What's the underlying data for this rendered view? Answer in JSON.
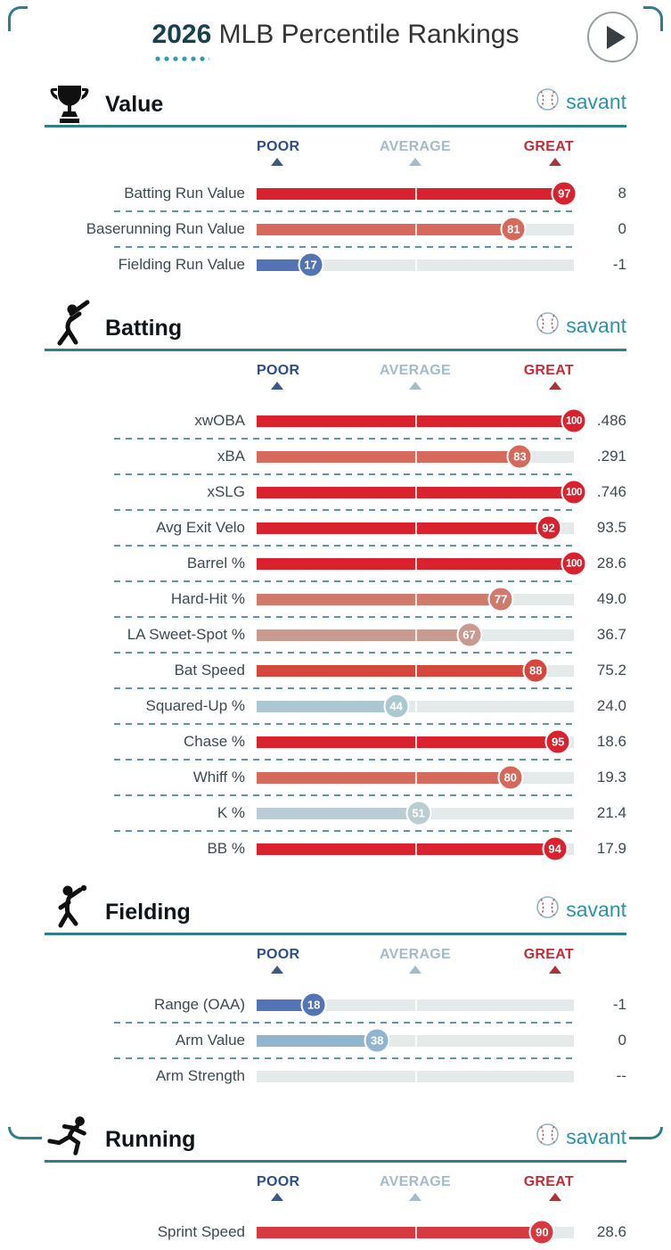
{
  "header": {
    "year": "2026",
    "title": "MLB Percentile Rankings",
    "play_icon": "play-icon"
  },
  "brand": {
    "name": "savant",
    "icon": "baseball-icon"
  },
  "scale": {
    "poor": "POOR",
    "average": "AVERAGE",
    "great": "GREAT"
  },
  "colors": {
    "teal_line": "#2e7e8b",
    "dashed_divider": "#5b98a4",
    "bar_track": "#e4e9ea",
    "poor_label": "#2c4e8d",
    "average_label": "#a4bcc8",
    "great_label": "#c52b35",
    "great_bar": "#d8232f",
    "poor_bar": "#5473b5"
  },
  "chart_data": {
    "type": "bar",
    "title": "2026 MLB Percentile Rankings",
    "x_range": [
      0,
      100
    ],
    "average_marker": 50,
    "legend": [
      "POOR",
      "AVERAGE",
      "GREAT"
    ],
    "sections": [
      {
        "name": "Value",
        "icon": "trophy-icon",
        "rows": [
          {
            "label": "Batting Run Value",
            "percentile": 97,
            "value": "8",
            "color": "#d8232f"
          },
          {
            "label": "Baserunning Run Value",
            "percentile": 81,
            "value": "0",
            "color": "#d5695c"
          },
          {
            "label": "Fielding Run Value",
            "percentile": 17,
            "value": "-1",
            "color": "#5473b5"
          }
        ]
      },
      {
        "name": "Batting",
        "icon": "batter-icon",
        "rows": [
          {
            "label": "xwOBA",
            "percentile": 100,
            "value": ".486",
            "color": "#d8232f"
          },
          {
            "label": "xBA",
            "percentile": 83,
            "value": ".291",
            "color": "#d5695c"
          },
          {
            "label": "xSLG",
            "percentile": 100,
            "value": ".746",
            "color": "#d8232f"
          },
          {
            "label": "Avg Exit Velo",
            "percentile": 92,
            "value": "93.5",
            "color": "#d8232f"
          },
          {
            "label": "Barrel %",
            "percentile": 100,
            "value": "28.6",
            "color": "#d8232f"
          },
          {
            "label": "Hard-Hit %",
            "percentile": 77,
            "value": "49.0",
            "color": "#cf7a6c"
          },
          {
            "label": "LA Sweet-Spot %",
            "percentile": 67,
            "value": "36.7",
            "color": "#c89a92"
          },
          {
            "label": "Bat Speed",
            "percentile": 88,
            "value": "75.2",
            "color": "#d5473d"
          },
          {
            "label": "Squared-Up %",
            "percentile": 44,
            "value": "24.0",
            "color": "#abc7d0"
          },
          {
            "label": "Chase %",
            "percentile": 95,
            "value": "18.6",
            "color": "#d8232f"
          },
          {
            "label": "Whiff %",
            "percentile": 80,
            "value": "19.3",
            "color": "#d5695c"
          },
          {
            "label": "K %",
            "percentile": 51,
            "value": "21.4",
            "color": "#bacdd4"
          },
          {
            "label": "BB %",
            "percentile": 94,
            "value": "17.9",
            "color": "#d8232f"
          }
        ]
      },
      {
        "name": "Fielding",
        "icon": "pitcher-icon",
        "rows": [
          {
            "label": "Range (OAA)",
            "percentile": 18,
            "value": "-1",
            "color": "#5473b5"
          },
          {
            "label": "Arm Value",
            "percentile": 38,
            "value": "0",
            "color": "#8fb6ce"
          },
          {
            "label": "Arm Strength",
            "percentile": null,
            "value": "--",
            "color": null
          }
        ]
      },
      {
        "name": "Running",
        "icon": "runner-icon",
        "rows": [
          {
            "label": "Sprint Speed",
            "percentile": 90,
            "value": "28.6",
            "color": "#d63a40"
          }
        ]
      }
    ]
  }
}
